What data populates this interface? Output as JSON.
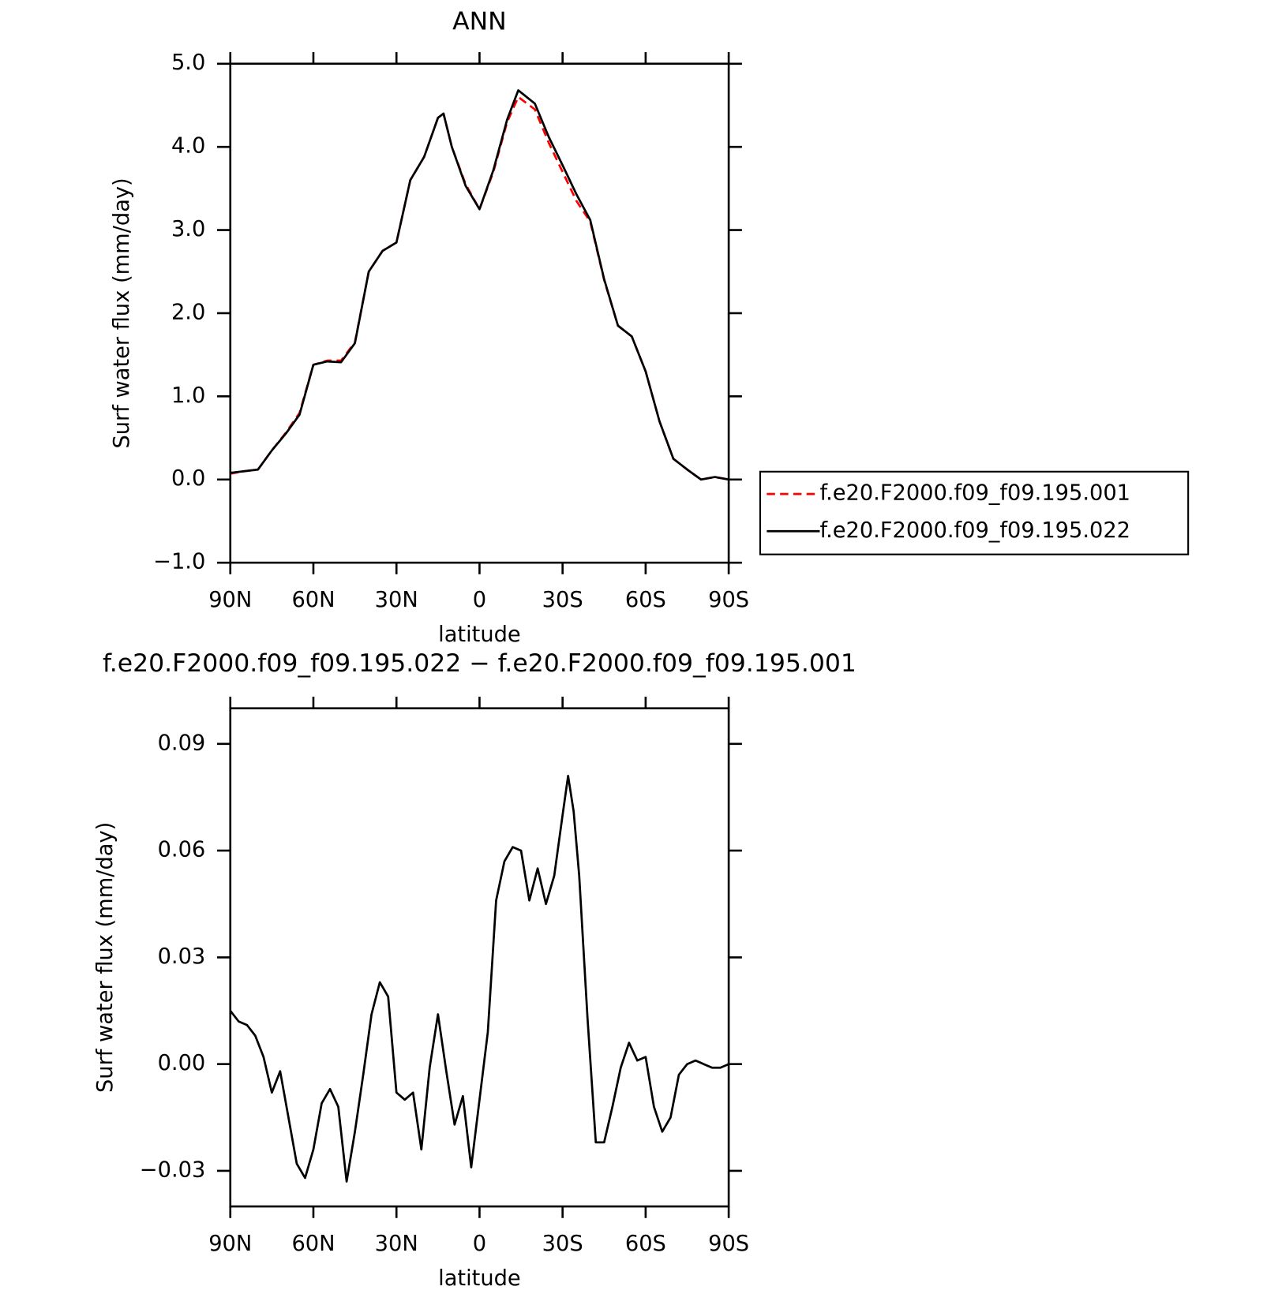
{
  "chart_data": [
    {
      "type": "line",
      "title": "ANN",
      "xlabel": "latitude",
      "ylabel": "Surf water flux (mm/day)",
      "x": [
        90,
        85,
        80,
        75,
        70,
        65,
        60,
        55,
        50,
        45,
        40,
        35,
        30,
        25,
        20,
        15,
        13,
        10,
        5,
        0,
        -5,
        -10,
        -14,
        -20,
        -25,
        -30,
        -35,
        -40,
        -45,
        -50,
        -55,
        -60,
        -65,
        -70,
        -75,
        -80,
        -85,
        -90
      ],
      "series": [
        {
          "name": "f.e20.F2000.f09_f09.195.001",
          "color": "#ff0000",
          "line_style": "dashed",
          "values": [
            0.07,
            0.1,
            0.12,
            0.35,
            0.56,
            0.8,
            1.38,
            1.43,
            1.43,
            1.65,
            2.5,
            2.75,
            2.85,
            3.6,
            3.88,
            4.35,
            4.4,
            4.0,
            3.55,
            3.25,
            3.7,
            4.3,
            4.6,
            4.45,
            4.05,
            3.7,
            3.35,
            3.1,
            2.4,
            1.85,
            1.72,
            1.3,
            0.7,
            0.25,
            0.12,
            0.0,
            0.03,
            0.0
          ]
        },
        {
          "name": "f.e20.F2000.f09_f09.195.022",
          "color": "#000000",
          "line_style": "solid",
          "values": [
            0.08,
            0.1,
            0.12,
            0.35,
            0.55,
            0.78,
            1.38,
            1.42,
            1.41,
            1.64,
            2.5,
            2.75,
            2.85,
            3.6,
            3.88,
            4.35,
            4.4,
            4.0,
            3.53,
            3.25,
            3.72,
            4.33,
            4.68,
            4.52,
            4.12,
            3.78,
            3.43,
            3.12,
            2.41,
            1.85,
            1.72,
            1.3,
            0.7,
            0.25,
            0.12,
            0.0,
            0.03,
            0.0
          ]
        }
      ],
      "xlim": [
        90,
        -90
      ],
      "xticks": [
        {
          "value": 90,
          "label": "90N"
        },
        {
          "value": 60,
          "label": "60N"
        },
        {
          "value": 30,
          "label": "30N"
        },
        0,
        {
          "value": -30,
          "label": "30S"
        },
        {
          "value": -60,
          "label": "60S"
        },
        {
          "value": -90,
          "label": "90S"
        }
      ],
      "ylim": [
        -1,
        5
      ],
      "yticks": [
        {
          "value": -1,
          "label": "−1.0"
        },
        {
          "value": 0,
          "label": "0.0"
        },
        {
          "value": 1,
          "label": "1.0"
        },
        {
          "value": 2,
          "label": "2.0"
        },
        {
          "value": 3,
          "label": "3.0"
        },
        {
          "value": 4,
          "label": "4.0"
        },
        {
          "value": 5,
          "label": "5.0"
        }
      ],
      "legend": "outside-right"
    },
    {
      "type": "line",
      "title": "f.e20.F2000.f09_f09.195.022 − f.e20.F2000.f09_f09.195.001",
      "xlabel": "latitude",
      "ylabel": "Surf water flux (mm/day)",
      "x": [
        90,
        87,
        84,
        81,
        78,
        75,
        72,
        69,
        66,
        63,
        60,
        57,
        54,
        51,
        48,
        45,
        42,
        39,
        36,
        33,
        30,
        27,
        24,
        21,
        18,
        15,
        12,
        9,
        6,
        3,
        0,
        -3,
        -6,
        -9,
        -12,
        -15,
        -18,
        -21,
        -24,
        -27,
        -30,
        -32,
        -34,
        -36,
        -39,
        -42,
        -45,
        -48,
        -51,
        -54,
        -57,
        -60,
        -63,
        -66,
        -69,
        -72,
        -75,
        -78,
        -81,
        -84,
        -87,
        -90
      ],
      "color": "#000000",
      "values": [
        0.015,
        0.012,
        0.011,
        0.008,
        0.002,
        -0.008,
        -0.002,
        -0.015,
        -0.028,
        -0.032,
        -0.024,
        -0.011,
        -0.007,
        -0.012,
        -0.033,
        -0.019,
        -0.003,
        0.014,
        0.023,
        0.019,
        -0.008,
        -0.01,
        -0.008,
        -0.024,
        -0.001,
        0.014,
        -0.002,
        -0.017,
        -0.009,
        -0.029,
        -0.01,
        0.009,
        0.046,
        0.057,
        0.061,
        0.06,
        0.046,
        0.055,
        0.045,
        0.053,
        0.07,
        0.081,
        0.071,
        0.053,
        0.013,
        -0.022,
        -0.022,
        -0.012,
        -0.001,
        0.006,
        0.001,
        0.002,
        -0.012,
        -0.019,
        -0.015,
        -0.003,
        0.0,
        0.001,
        0.0,
        -0.001,
        -0.001,
        0.0
      ],
      "xlim": [
        90,
        -90
      ],
      "xticks": [
        {
          "value": 90,
          "label": "90N"
        },
        {
          "value": 60,
          "label": "60N"
        },
        {
          "value": 30,
          "label": "30N"
        },
        0,
        {
          "value": -30,
          "label": "30S"
        },
        {
          "value": -60,
          "label": "60S"
        },
        {
          "value": -90,
          "label": "90S"
        }
      ],
      "ylim": [
        -0.04,
        0.1
      ],
      "yticks": [
        {
          "value": -0.03,
          "label": "−0.03"
        },
        {
          "value": 0,
          "label": "0.00"
        },
        0.03,
        0.06,
        0.09
      ]
    }
  ]
}
